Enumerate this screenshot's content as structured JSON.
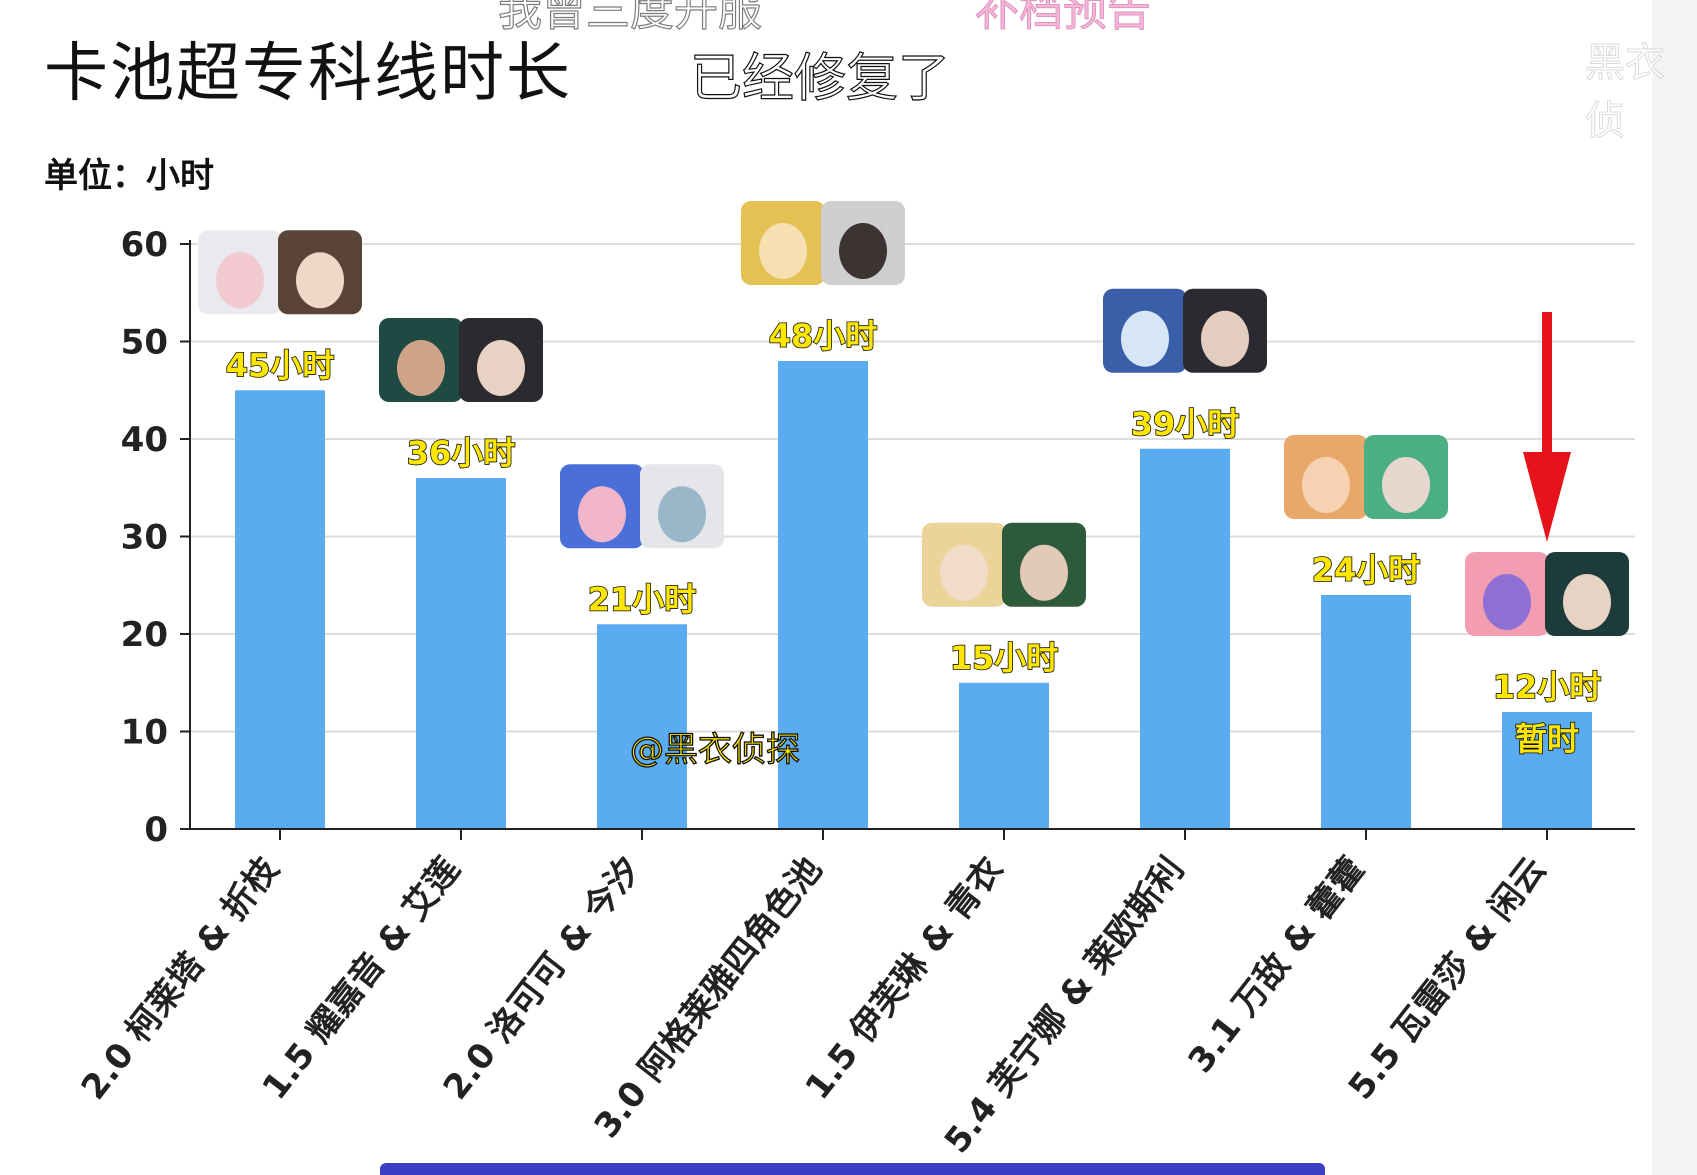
{
  "title": "卡池超专科线时长",
  "unit_label": "单位：小时",
  "captions": {
    "top_partial": "我曾三度开服",
    "main": "已经修复了",
    "pink_partial": "补档预告",
    "edge_partial": "黑衣侦"
  },
  "watermark": "@黑衣侦探",
  "colors": {
    "bar": "#5aabf0",
    "grid": "#dcdcdc",
    "axis": "#222222",
    "arrow": "#e8121b",
    "label_fill": "#ffe600",
    "label_stroke": "#111111"
  },
  "chart_data": {
    "type": "bar",
    "title": "卡池超专科线时长",
    "ylabel": "单位：小时",
    "xlabel": "",
    "ylim": [
      0,
      60
    ],
    "yticks": [
      0,
      10,
      20,
      30,
      40,
      50,
      60
    ],
    "grid": true,
    "categories": [
      "2.0 柯莱塔 & 折枝",
      "1.5 耀嘉音 & 艾莲",
      "2.0 洛可可 & 今汐",
      "3.0 阿格莱雅四角色池",
      "1.5 伊芙琳 & 青衣",
      "5.4 芙宁娜 & 莱欧斯利",
      "3.1 万敌 & 藿藿",
      "5.5 瓦雷莎 & 闲云"
    ],
    "values": [
      45,
      36,
      21,
      48,
      15,
      39,
      24,
      12
    ],
    "data_labels": [
      "45小时",
      "36小时",
      "21小时",
      "48小时",
      "15小时",
      "39小时",
      "24小时",
      "12小时"
    ],
    "annotations": [
      {
        "category_index": 7,
        "text": "暂时"
      }
    ]
  }
}
